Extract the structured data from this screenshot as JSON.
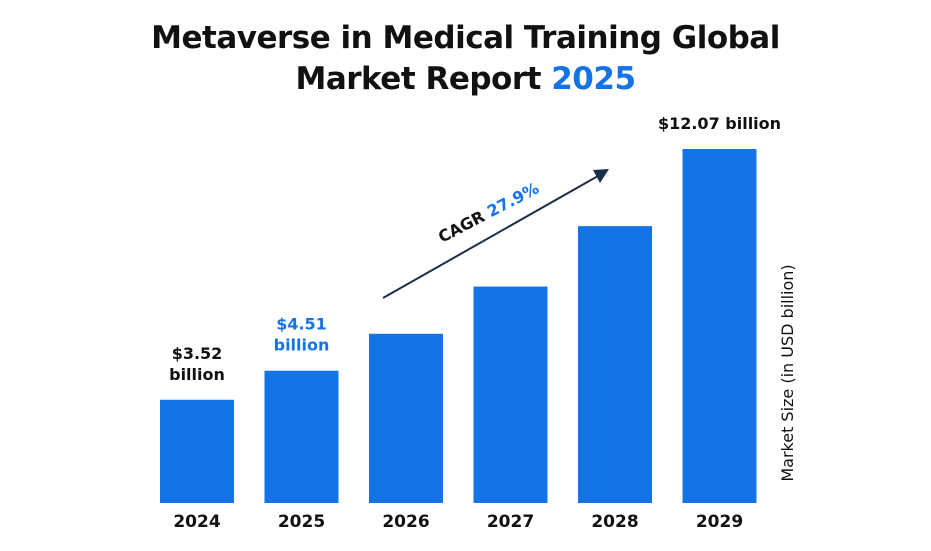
{
  "title": {
    "line1": "Metaverse in Medical Training Global",
    "line2_prefix": "Market Report ",
    "line2_year": "2025"
  },
  "colors": {
    "bar": "#1473e6",
    "accent": "#1473e6",
    "text": "#111111",
    "arrow": "#1d2e4a"
  },
  "cagr": {
    "label": "CAGR ",
    "value": "27.9%"
  },
  "chart_data": {
    "type": "bar",
    "categories": [
      "2024",
      "2025",
      "2026",
      "2027",
      "2028",
      "2029"
    ],
    "values": [
      3.52,
      4.51,
      5.77,
      7.38,
      9.44,
      12.07
    ],
    "ylabel": "Market Size (in USD billion)",
    "ylim": [
      0,
      12.07
    ],
    "data_labels": [
      {
        "index": 0,
        "lines": [
          "$3.52",
          "billion"
        ],
        "color": "#111111"
      },
      {
        "index": 1,
        "lines": [
          "$4.51",
          "billion"
        ],
        "color": "#1473e6"
      },
      {
        "index": 5,
        "lines": [
          "$12.07 billion"
        ],
        "color": "#111111"
      }
    ],
    "grid": false
  }
}
